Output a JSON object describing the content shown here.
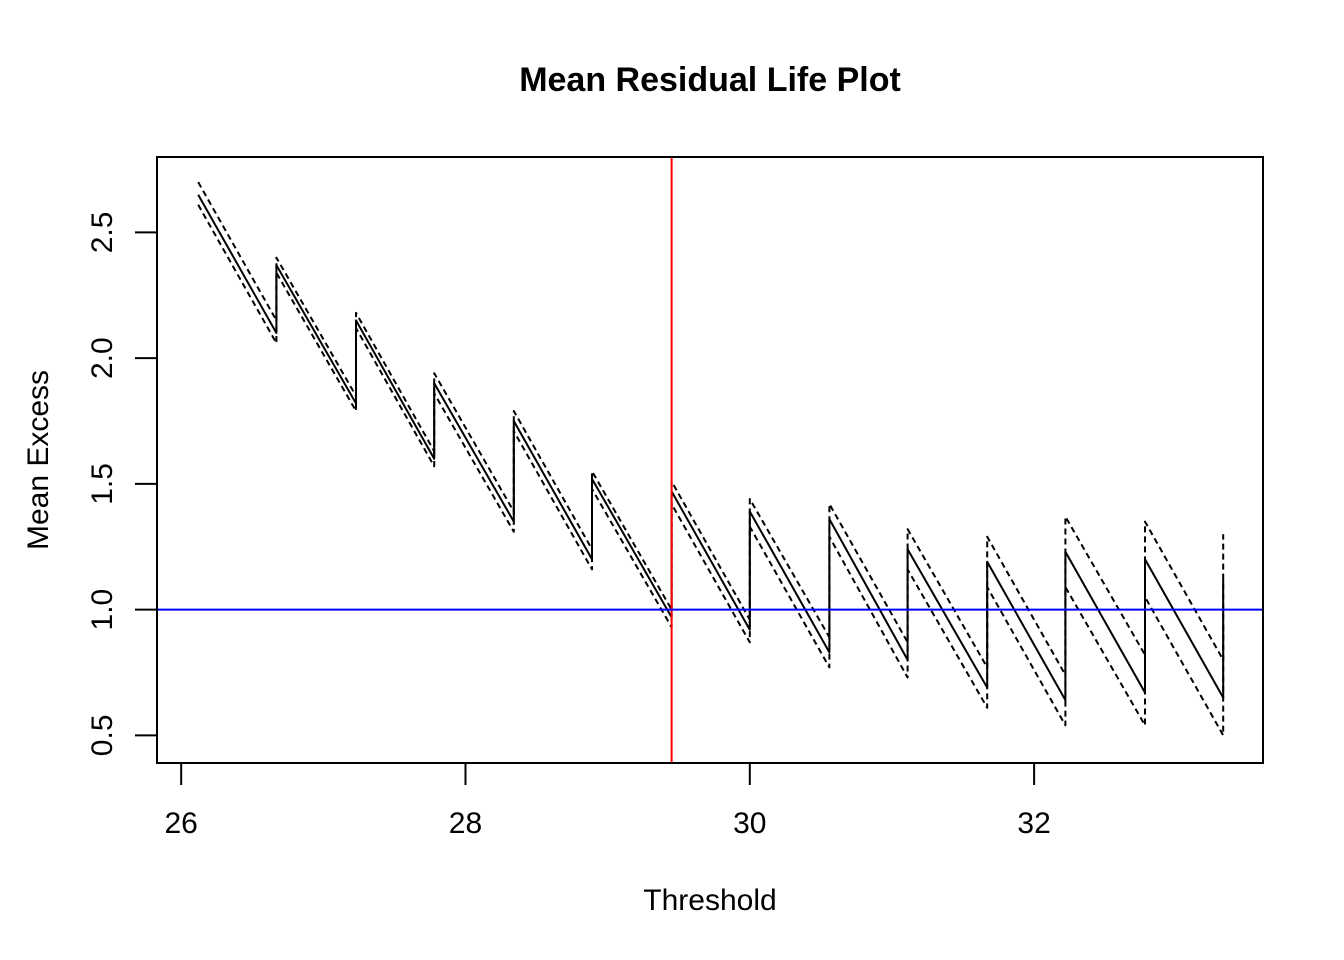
{
  "chart_data": {
    "type": "line",
    "title": "Mean Residual Life Plot",
    "xlabel": "Threshold",
    "ylabel": "Mean Excess",
    "xlim": [
      25.83,
      33.61
    ],
    "ylim": [
      0.39,
      2.8
    ],
    "x_ticks": [
      26,
      28,
      30,
      32
    ],
    "y_ticks": [
      0.5,
      1.0,
      1.5,
      2.0,
      2.5
    ],
    "x_tick_labels": [
      "26",
      "28",
      "30",
      "32"
    ],
    "y_tick_labels": [
      "0.5",
      "1.0",
      "1.5",
      "2.0",
      "2.5"
    ],
    "grid": false,
    "legend": "none",
    "series": [
      {
        "role": "mean_excess",
        "style": "solid",
        "color": "#000000",
        "x": [
          26.12,
          26.67,
          26.67,
          27.23,
          27.23,
          27.78,
          27.78,
          28.34,
          28.34,
          28.89,
          28.89,
          29.45,
          29.45,
          30.0,
          30.0,
          30.56,
          30.56,
          31.11,
          31.11,
          31.67,
          31.67,
          32.22,
          32.22,
          32.78,
          32.78,
          33.33,
          33.33
        ],
        "y": [
          2.65,
          2.1,
          2.37,
          1.82,
          2.15,
          1.6,
          1.9,
          1.35,
          1.75,
          1.2,
          1.52,
          0.97,
          1.47,
          0.92,
          1.39,
          0.83,
          1.36,
          0.8,
          1.24,
          0.69,
          1.19,
          0.64,
          1.23,
          0.67,
          1.2,
          0.65,
          1.12
        ]
      },
      {
        "role": "upper_confidence_bound",
        "style": "dashed",
        "color": "#000000",
        "x": [
          26.12,
          26.67,
          26.67,
          27.23,
          27.23,
          27.78,
          27.78,
          28.34,
          28.34,
          28.89,
          28.89,
          29.45,
          29.45,
          30.0,
          30.0,
          30.56,
          30.56,
          31.11,
          31.11,
          31.67,
          31.67,
          32.22,
          32.22,
          32.78,
          32.78,
          33.33,
          33.33
        ],
        "y": [
          2.7,
          2.15,
          2.4,
          1.85,
          2.18,
          1.63,
          1.94,
          1.39,
          1.79,
          1.24,
          1.55,
          1.0,
          1.51,
          0.96,
          1.44,
          0.89,
          1.42,
          0.87,
          1.32,
          0.77,
          1.29,
          0.74,
          1.37,
          0.82,
          1.35,
          0.8,
          1.3
        ]
      },
      {
        "role": "lower_confidence_bound",
        "style": "dashed",
        "color": "#000000",
        "x": [
          26.12,
          26.67,
          26.67,
          27.23,
          27.23,
          27.78,
          27.78,
          28.34,
          28.34,
          28.89,
          28.89,
          29.45,
          29.45,
          30.0,
          30.0,
          30.56,
          30.56,
          31.11,
          31.11,
          31.67,
          31.67,
          32.22,
          32.22,
          32.78,
          32.78,
          33.33,
          33.33
        ],
        "y": [
          2.61,
          2.06,
          2.34,
          1.79,
          2.12,
          1.57,
          1.86,
          1.31,
          1.71,
          1.16,
          1.48,
          0.93,
          1.42,
          0.87,
          1.33,
          0.77,
          1.29,
          0.73,
          1.16,
          0.61,
          1.09,
          0.54,
          1.09,
          0.54,
          1.05,
          0.5,
          0.94
        ]
      }
    ],
    "reference_lines": [
      {
        "orientation": "vertical",
        "value": 29.45,
        "color": "#ff0000"
      },
      {
        "orientation": "horizontal",
        "value": 1.0,
        "color": "#0000ff"
      }
    ]
  }
}
